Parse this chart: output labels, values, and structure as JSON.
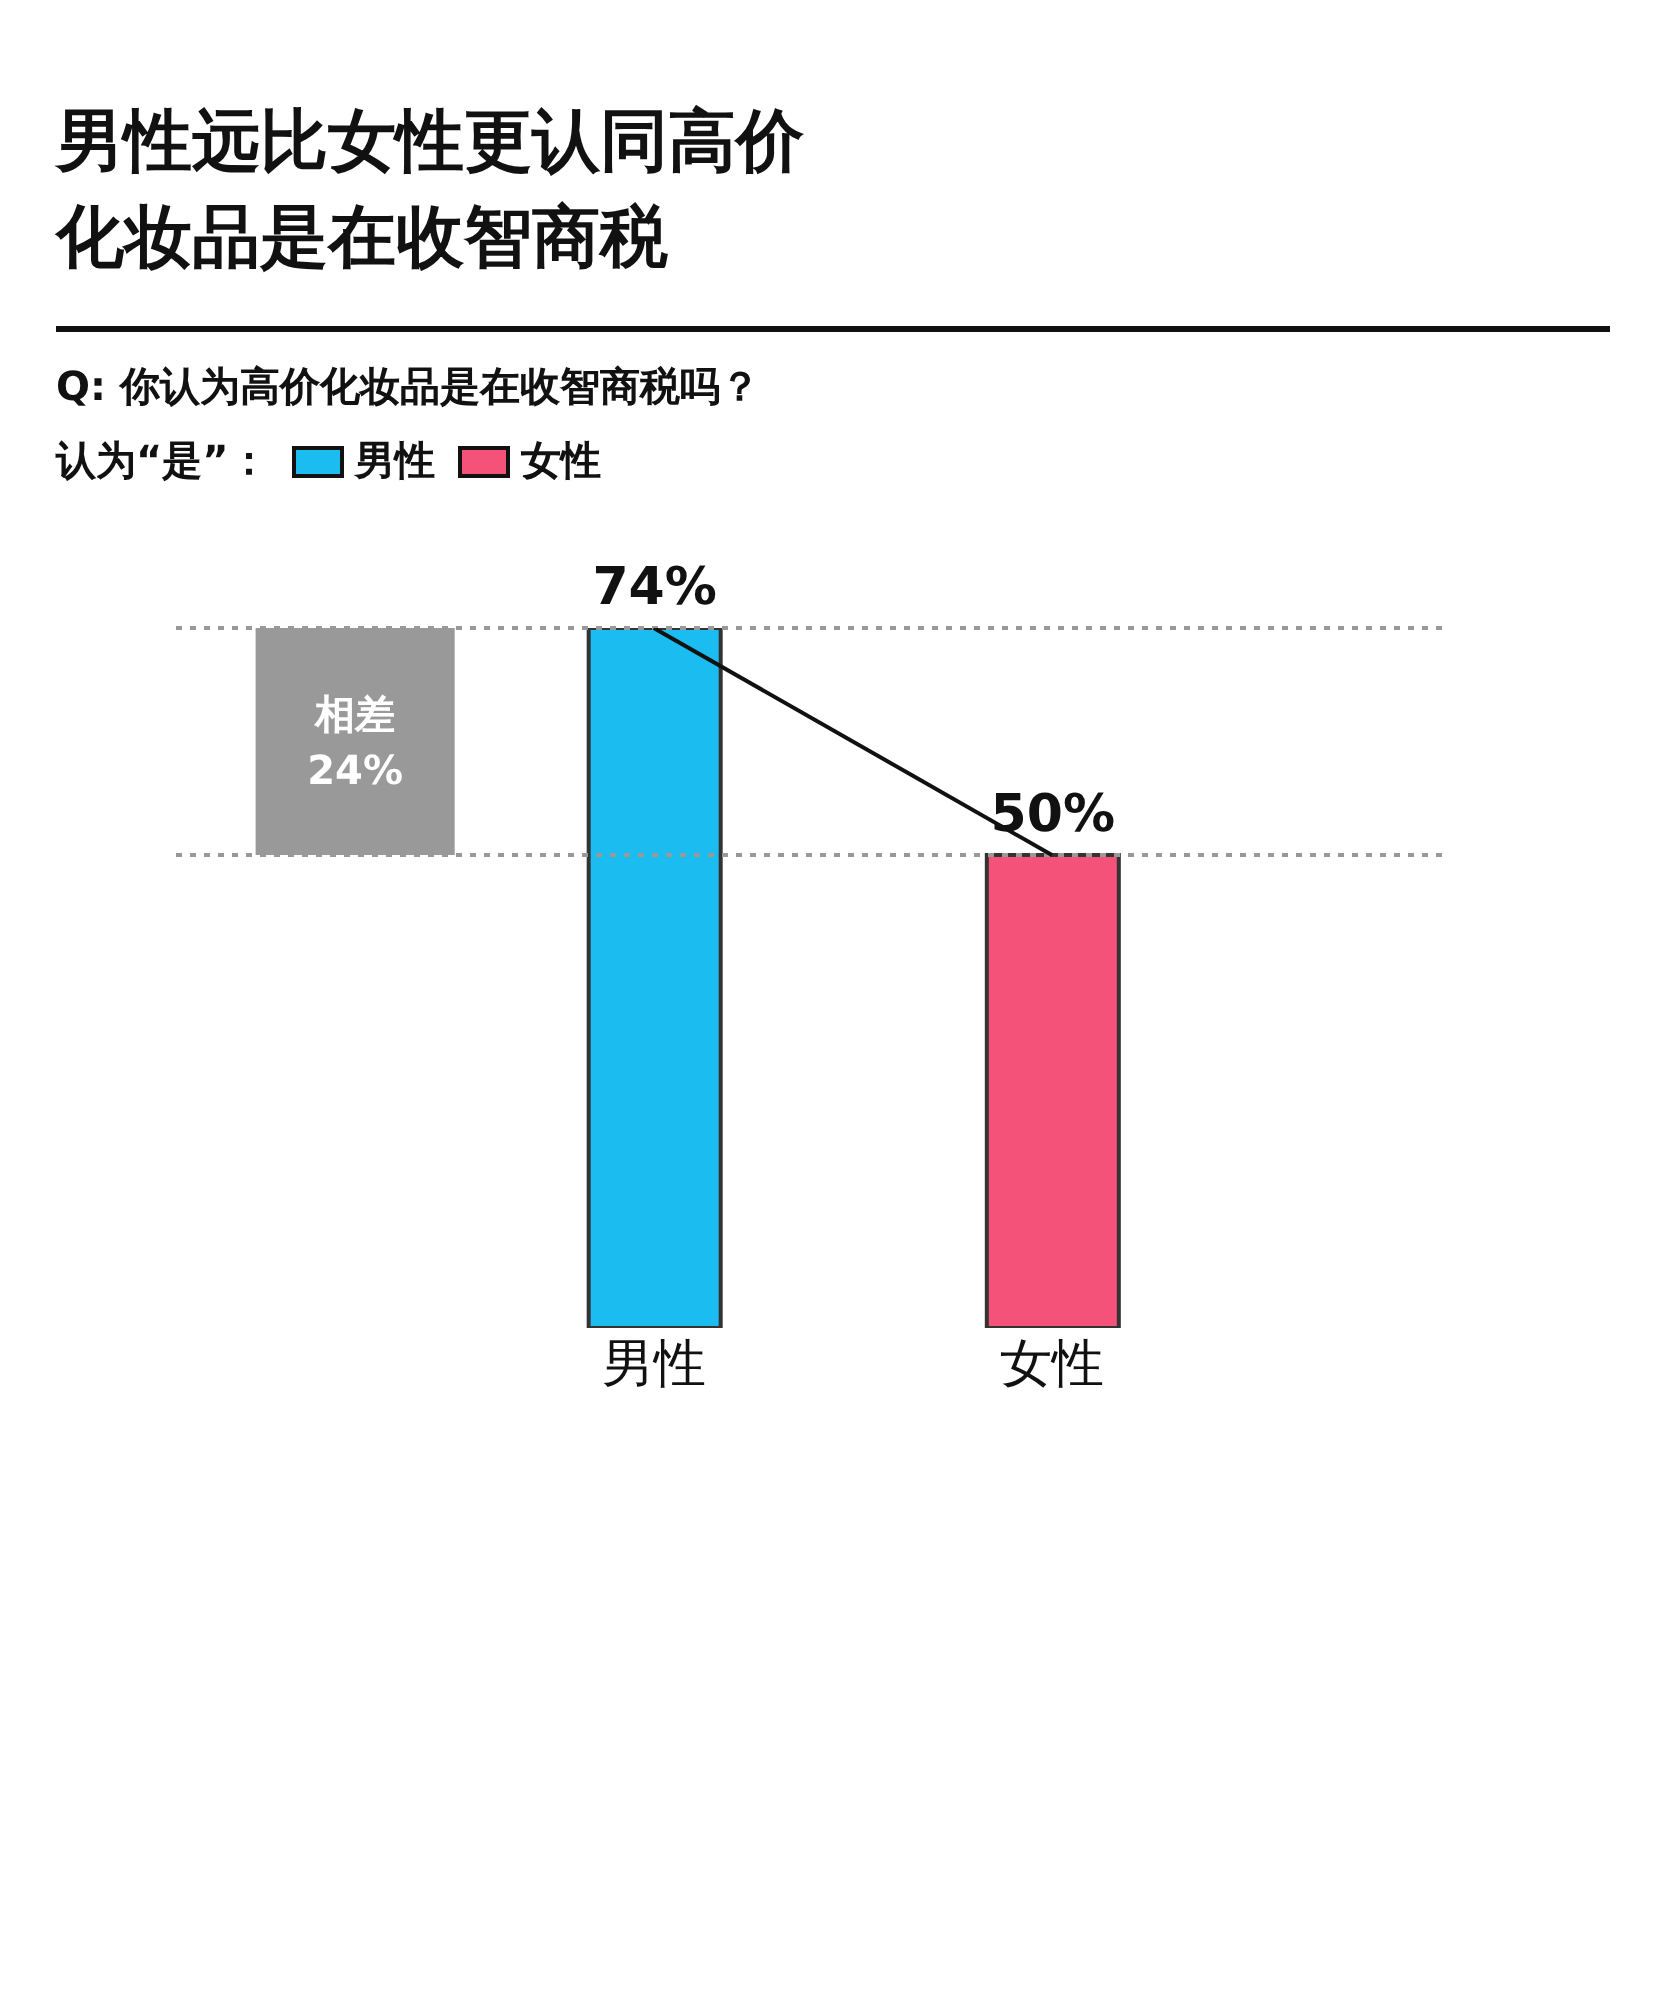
{
  "chart_data": {
    "type": "bar",
    "title": "男性远比女性更认同高价化妆品是在收智商税",
    "subtitle": "Q: 你认为高价化妆品是在收智商税吗？",
    "legend_title": "认为“是”：",
    "legend": "top left",
    "stacked": true,
    "categories": [
      "男性",
      "女性"
    ],
    "series": [
      {
        "name": "男性",
        "color": "#1bbcf0",
        "values": [
          74,
          null
        ],
        "value_labels": [
          "74%",
          null
        ]
      },
      {
        "name": "女性",
        "color": "#f5527a",
        "values": [
          null,
          50
        ],
        "value_labels": [
          null,
          "50%"
        ]
      },
      {
        "type": "line",
        "color": "#111111",
        "values": [
          74,
          50
        ],
        "marker": "none",
        "line_style": "solid"
      }
    ],
    "ref_lines": [
      {
        "axis": "y",
        "value": 74,
        "color": "#999999",
        "line_style": "dotted"
      },
      {
        "axis": "y",
        "value": 50,
        "color": "#999999",
        "line_style": "dotted"
      }
    ],
    "bands": [
      {
        "axis": "y",
        "from": 50,
        "to": 74,
        "label": "相差\n24%",
        "color": "#999999"
      }
    ]
  }
}
